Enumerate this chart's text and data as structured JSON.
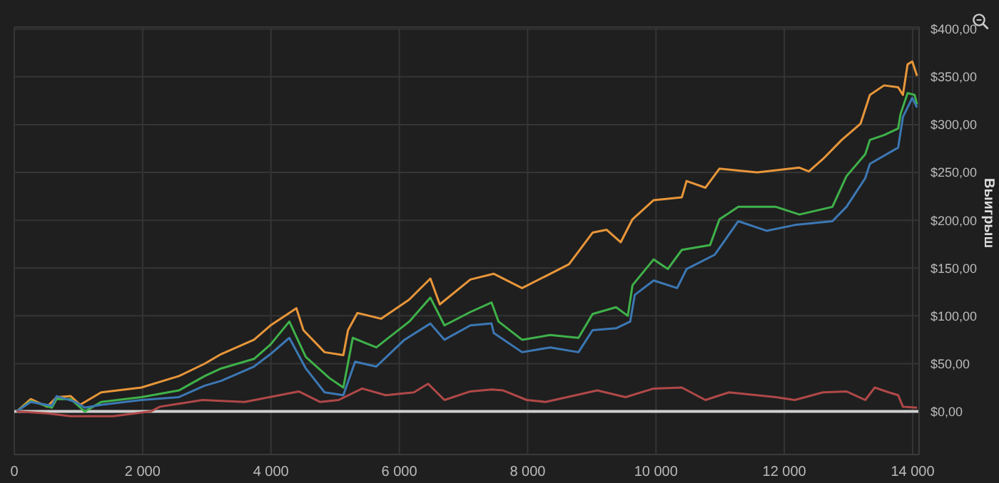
{
  "chart_data": {
    "type": "line",
    "ylabel": "Выигрыш",
    "xlim": [
      0,
      14100
    ],
    "ylim": [
      -45,
      402
    ],
    "xticks": [
      0,
      {
        "value": 2000,
        "label": "2 000"
      },
      {
        "value": 4000,
        "label": "4 000"
      },
      {
        "value": 6000,
        "label": "6 000"
      },
      {
        "value": 8000,
        "label": "8 000"
      },
      {
        "value": 10000,
        "label": "10 000"
      },
      {
        "value": 12000,
        "label": "12 000"
      },
      {
        "value": 14000,
        "label": "14 000"
      }
    ],
    "yticks": [
      {
        "value": 0,
        "label": "$0,00"
      },
      {
        "value": 50,
        "label": "$50,00"
      },
      {
        "value": 100,
        "label": "$100,00"
      },
      {
        "value": 150,
        "label": "$150,00"
      },
      {
        "value": 200,
        "label": "$200,00"
      },
      {
        "value": 250,
        "label": "$250,00"
      },
      {
        "value": 300,
        "label": "$300,00"
      },
      {
        "value": 350,
        "label": "$350,00"
      },
      {
        "value": 400,
        "label": "$400,00"
      }
    ],
    "grid": true,
    "line_style": "solid",
    "marker": "none",
    "ref_lines": [
      {
        "axis": "y",
        "value": 0,
        "color": "#d0d0d0"
      }
    ],
    "series": [
      {
        "color": "#e8963a",
        "x": [
          37,
          257,
          512,
          660,
          880,
          1025,
          1355,
          1980,
          2565,
          2967,
          3224,
          3736,
          3993,
          4396,
          4506,
          4836,
          5128,
          5201,
          5348,
          5715,
          6155,
          6484,
          6631,
          7107,
          7473,
          7913,
          8352,
          8645,
          9012,
          9232,
          9451,
          9634,
          9964,
          10403,
          10477,
          10770,
          10990,
          11576,
          12235,
          12382,
          12602,
          12895,
          13188,
          13334,
          13554,
          13774,
          13848,
          13921,
          13994,
          14068
        ],
        "values": [
          0,
          13,
          5,
          15,
          16,
          7,
          20,
          25,
          37,
          50,
          60,
          75,
          90,
          108,
          85,
          62,
          59,
          85,
          103,
          97,
          117,
          139,
          112,
          138,
          144,
          129,
          144,
          154,
          187,
          190,
          177,
          201,
          221,
          224,
          241,
          234,
          254,
          250,
          255,
          251,
          264,
          284,
          301,
          331,
          341,
          339,
          331,
          363,
          366,
          351
        ]
      },
      {
        "color": "#3fb24a",
        "x": [
          37,
          257,
          586,
          660,
          880,
          1099,
          1355,
          1980,
          2565,
          2967,
          3224,
          3736,
          3993,
          4286,
          4543,
          4910,
          5128,
          5275,
          5642,
          6155,
          6484,
          6704,
          7107,
          7437,
          7547,
          7913,
          8352,
          8792,
          9012,
          9378,
          9561,
          9634,
          9964,
          10184,
          10403,
          10843,
          10990,
          11283,
          11869,
          12235,
          12749,
          12968,
          13261,
          13334,
          13554,
          13774,
          13811,
          13921,
          14031,
          14068
        ],
        "values": [
          0,
          11,
          4,
          13,
          13,
          0,
          10,
          15,
          22,
          37,
          45,
          55,
          70,
          94,
          57,
          35,
          25,
          77,
          67,
          94,
          119,
          90,
          104,
          114,
          94,
          75,
          80,
          77,
          102,
          109,
          100,
          132,
          159,
          149,
          169,
          174,
          201,
          214,
          214,
          206,
          214,
          246,
          269,
          284,
          289,
          296,
          311,
          333,
          331,
          321
        ]
      },
      {
        "color": "#3c78b4",
        "x": [
          37,
          257,
          586,
          660,
          952,
          1099,
          1355,
          1980,
          2565,
          2967,
          3224,
          3736,
          3993,
          4286,
          4543,
          4836,
          5128,
          5311,
          5642,
          6081,
          6484,
          6704,
          7107,
          7437,
          7473,
          7913,
          8352,
          8792,
          9012,
          9378,
          9598,
          9670,
          9964,
          10330,
          10477,
          10917,
          11283,
          11723,
          12162,
          12749,
          12968,
          13261,
          13334,
          13774,
          13848,
          13994,
          14068
        ],
        "values": [
          0,
          10,
          6,
          16,
          10,
          4,
          7,
          12,
          15,
          27,
          32,
          47,
          60,
          77,
          45,
          20,
          17,
          52,
          47,
          75,
          92,
          75,
          90,
          92,
          82,
          62,
          67,
          62,
          85,
          87,
          94,
          122,
          137,
          129,
          149,
          164,
          199,
          189,
          195,
          199,
          214,
          244,
          259,
          276,
          308,
          328,
          318
        ]
      },
      {
        "color": "#b04848",
        "x": [
          37,
          512,
          880,
          1539,
          2125,
          2271,
          2931,
          3590,
          4433,
          4763,
          5055,
          5422,
          5788,
          6228,
          6448,
          6704,
          7107,
          7437,
          7620,
          7986,
          8279,
          9085,
          9525,
          9964,
          10403,
          10770,
          11137,
          11869,
          12162,
          12602,
          12968,
          13261,
          13408,
          13628,
          13774,
          13848,
          14068
        ],
        "values": [
          0,
          -2,
          -5,
          -5,
          0,
          5,
          12,
          10,
          21,
          10,
          12,
          24,
          17,
          20,
          29,
          12,
          21,
          23,
          22,
          12,
          10,
          22,
          15,
          24,
          25,
          12,
          20,
          15,
          12,
          20,
          21,
          12,
          25,
          20,
          17,
          5,
          4
        ]
      }
    ]
  }
}
